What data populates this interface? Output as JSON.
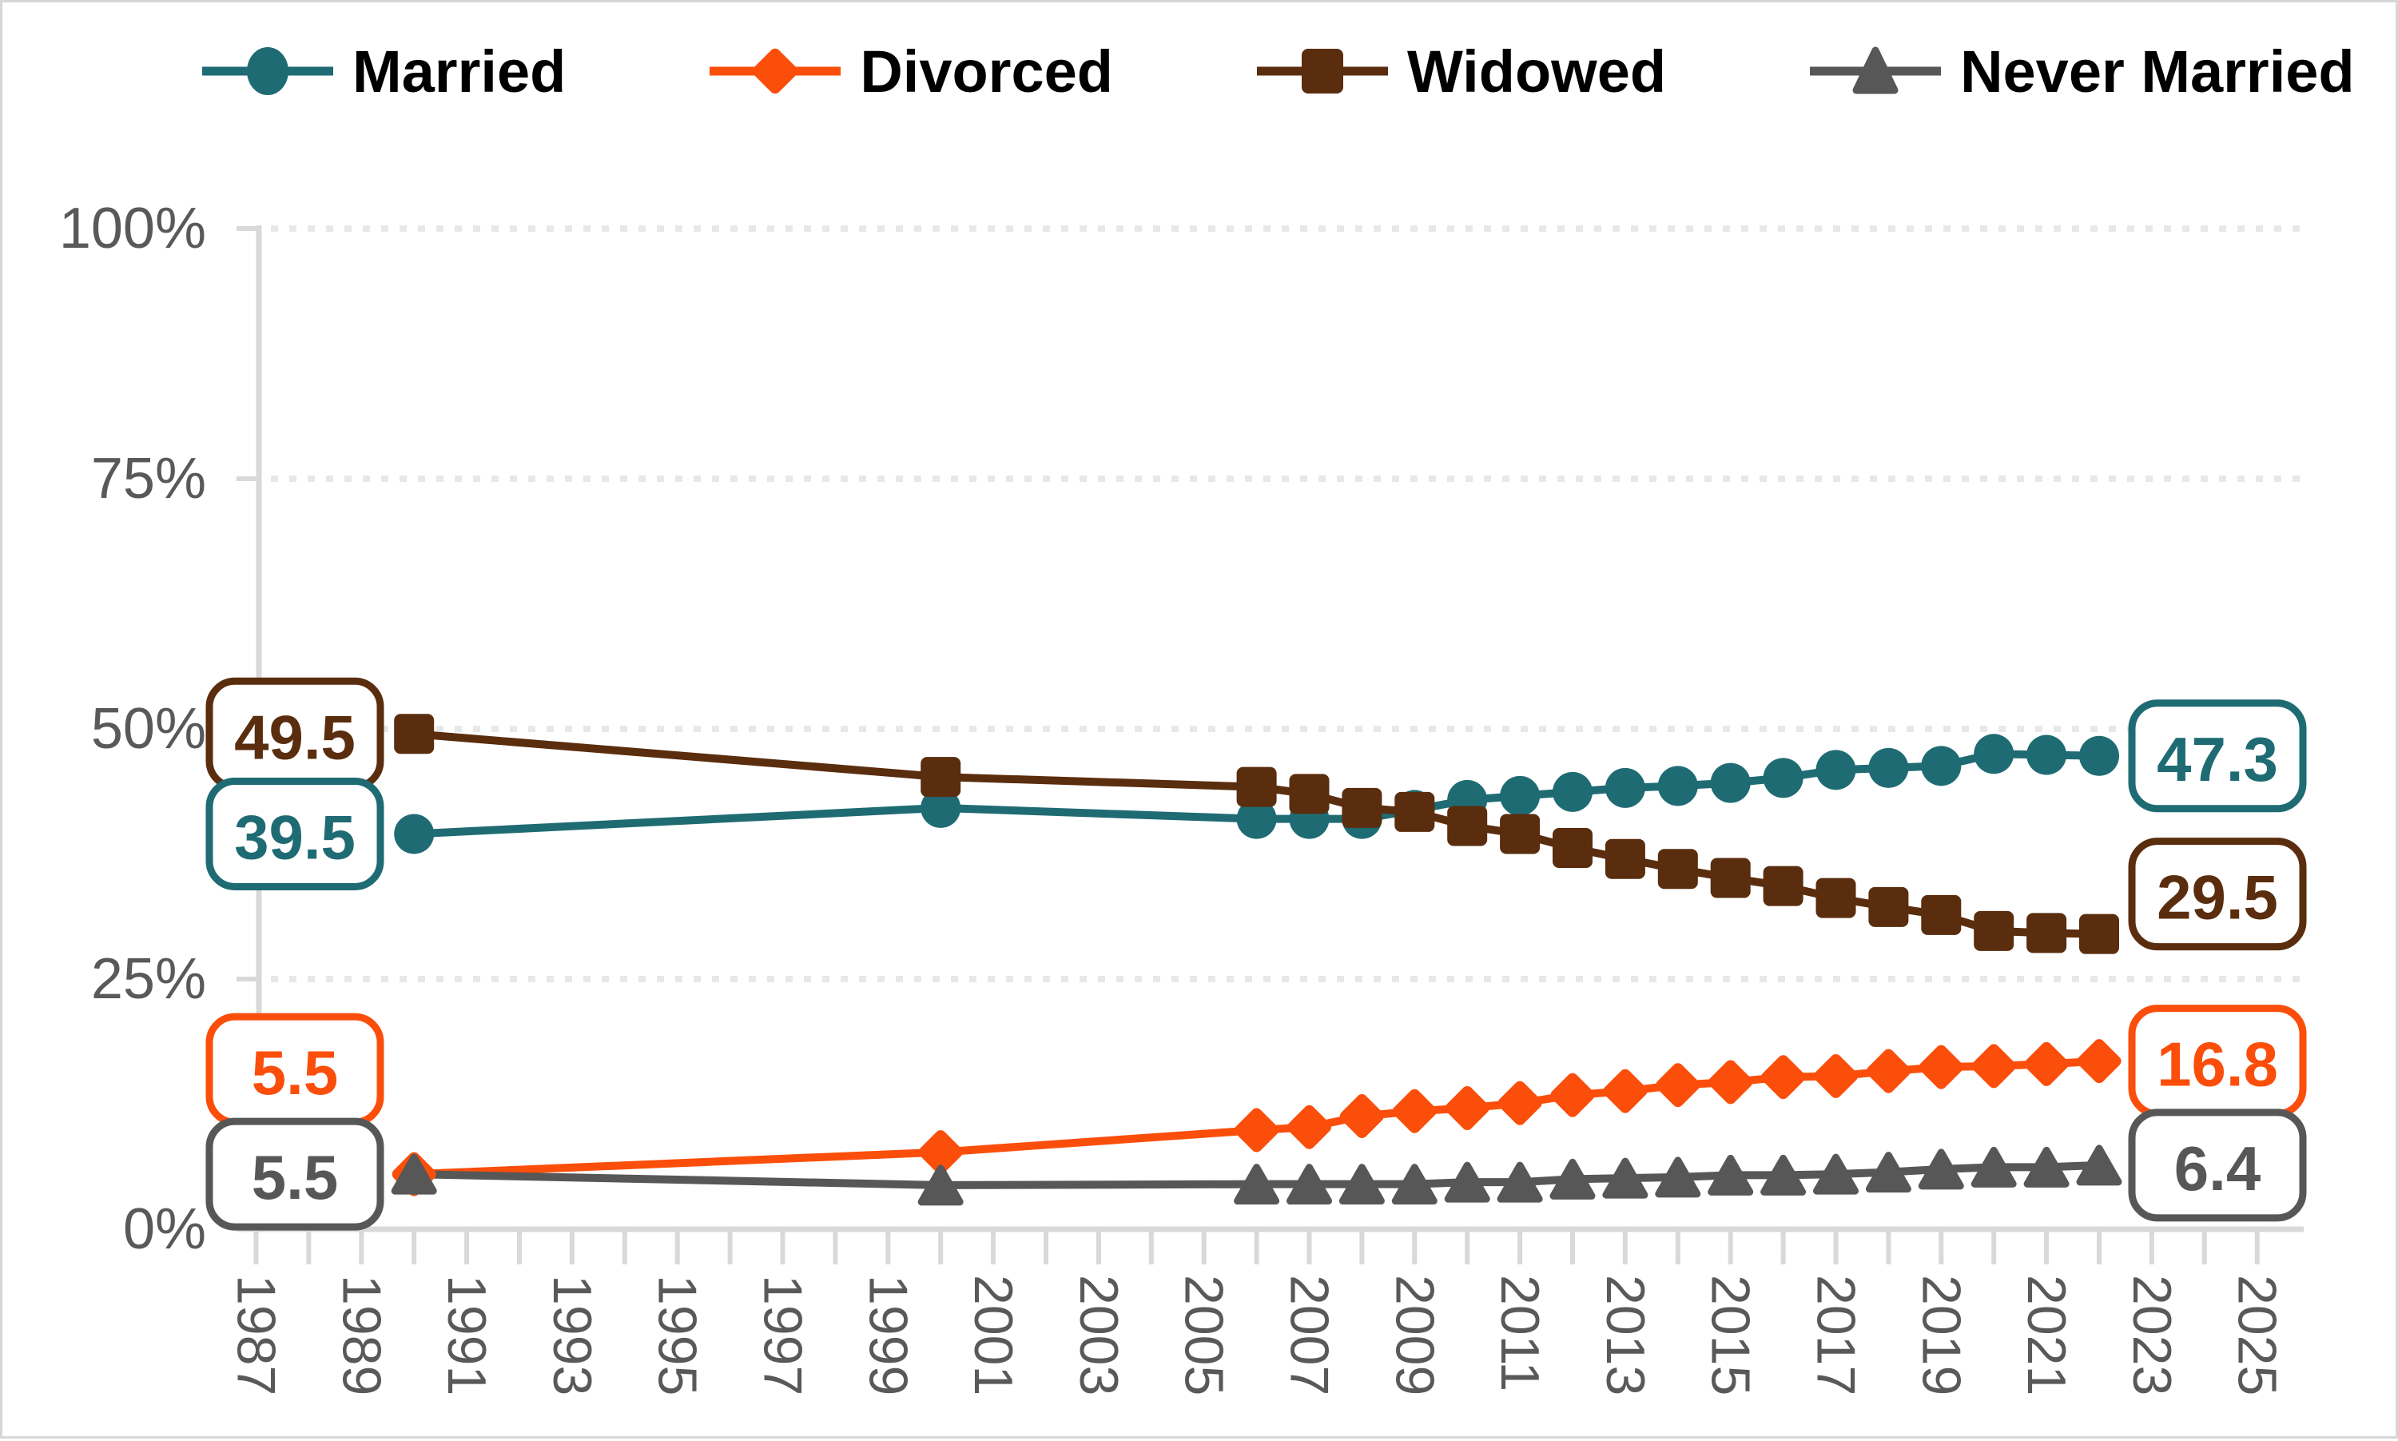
{
  "chart_data": {
    "type": "line",
    "title": "",
    "x": [
      1990,
      2000,
      2006,
      2007,
      2008,
      2009,
      2010,
      2011,
      2012,
      2013,
      2014,
      2015,
      2016,
      2017,
      2018,
      2019,
      2020,
      2021,
      2022
    ],
    "series": [
      {
        "name": "Married",
        "color": "#1F6B74",
        "marker": "circle",
        "values": [
          39.5,
          42.1,
          41.0,
          41.0,
          41.0,
          41.9,
          42.9,
          43.3,
          43.7,
          44.1,
          44.3,
          44.6,
          45.1,
          45.9,
          46.1,
          46.3,
          47.5,
          47.4,
          47.3
        ],
        "start_label": "39.5",
        "end_label": "47.3"
      },
      {
        "name": "Divorced",
        "color": "#FB4E0B",
        "marker": "diamond",
        "values": [
          5.5,
          7.7,
          9.9,
          10.2,
          11.3,
          11.8,
          12.1,
          12.6,
          13.4,
          13.8,
          14.4,
          14.7,
          15.2,
          15.3,
          15.8,
          16.2,
          16.3,
          16.5,
          16.8
        ],
        "start_label": "5.5",
        "end_label": "16.8"
      },
      {
        "name": "Widowed",
        "color": "#5A2D0E",
        "marker": "square",
        "values": [
          49.5,
          45.2,
          44.2,
          43.5,
          42.1,
          41.7,
          40.3,
          39.5,
          38.1,
          37.0,
          36.0,
          35.1,
          34.3,
          33.1,
          32.2,
          31.4,
          29.8,
          29.6,
          29.5
        ],
        "start_label": "49.5",
        "end_label": "29.5"
      },
      {
        "name": "Never Married",
        "color": "#575757",
        "marker": "triangle",
        "values": [
          5.5,
          4.4,
          4.5,
          4.5,
          4.5,
          4.5,
          4.7,
          4.7,
          5.0,
          5.1,
          5.2,
          5.4,
          5.4,
          5.5,
          5.7,
          6.0,
          6.2,
          6.2,
          6.4
        ],
        "start_label": "5.5",
        "end_label": "6.4"
      }
    ],
    "y_axis": {
      "min": 0,
      "max": 100,
      "tick_labels": [
        "0%",
        "25%",
        "50%",
        "75%",
        "100%"
      ]
    },
    "x_axis": {
      "range_start": 1987,
      "range_end": 2025,
      "labeled_years": [
        "1987",
        "1989",
        "1991",
        "1993",
        "1995",
        "1997",
        "1999",
        "2001",
        "2003",
        "2005",
        "2007",
        "2009",
        "2011",
        "2013",
        "2015",
        "2017",
        "2019",
        "2021",
        "2023",
        "2025"
      ]
    },
    "legend_position": "top",
    "grid": "dotted-horizontal"
  },
  "legend": {
    "items": [
      {
        "label": "Married"
      },
      {
        "label": "Divorced"
      },
      {
        "label": "Widowed"
      },
      {
        "label": "Never Married"
      }
    ]
  },
  "callouts": {
    "left": [
      {
        "series": "Widowed",
        "text": "49.5"
      },
      {
        "series": "Married",
        "text": "39.5"
      },
      {
        "series": "Divorced",
        "text": "5.5"
      },
      {
        "series": "Never Married",
        "text": "5.5"
      }
    ],
    "right": [
      {
        "series": "Married",
        "text": "47.3"
      },
      {
        "series": "Widowed",
        "text": "29.5"
      },
      {
        "series": "Divorced",
        "text": "16.8"
      },
      {
        "series": "Never Married",
        "text": "6.4"
      }
    ]
  },
  "colors": {
    "background": "#FFFFFF",
    "axis_line": "#D9D9D9",
    "gridline": "#E8E8E8",
    "axis_text": "#595959",
    "legend_text": "#000000"
  }
}
